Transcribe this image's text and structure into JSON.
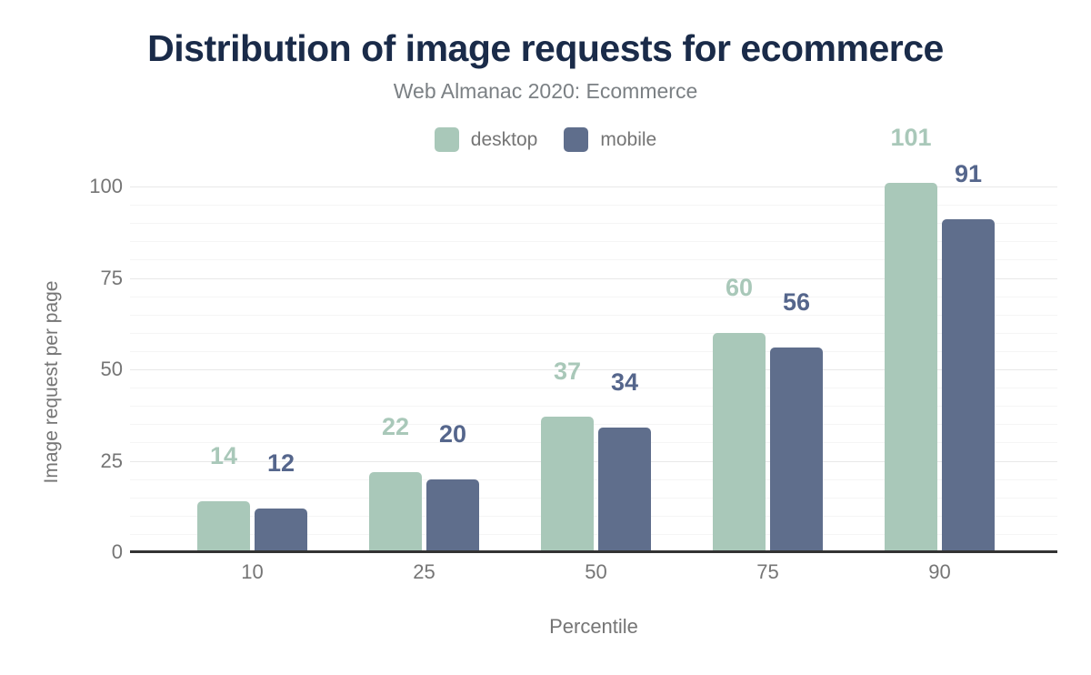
{
  "chart_data": {
    "type": "bar",
    "title": "Distribution of image requests for ecommerce",
    "subtitle": "Web Almanac 2020: Ecommerce",
    "categories": [
      "10",
      "25",
      "50",
      "75",
      "90"
    ],
    "series": [
      {
        "name": "desktop",
        "color": "#a9c8b9",
        "label_color": "#a9c8b9",
        "values": [
          14,
          22,
          37,
          60,
          101
        ]
      },
      {
        "name": "mobile",
        "color": "#5f6e8c",
        "label_color": "#55668c",
        "values": [
          12,
          20,
          34,
          56,
          91
        ]
      }
    ],
    "xlabel": "Percentile",
    "ylabel": "Image request per page",
    "y_ticks": [
      0,
      25,
      50,
      75,
      100
    ],
    "ylim": [
      0,
      100
    ],
    "grid": {
      "minor_step": 5,
      "major_step": 25,
      "minor_color": "#f5f5f5",
      "major_color": "#e8e8e8"
    },
    "legend_position": "top",
    "colors": {
      "title": "#1a2b49",
      "subtitle": "#7b8084",
      "axis_text": "#757575",
      "axis_line": "#333333",
      "background": "#ffffff"
    }
  }
}
